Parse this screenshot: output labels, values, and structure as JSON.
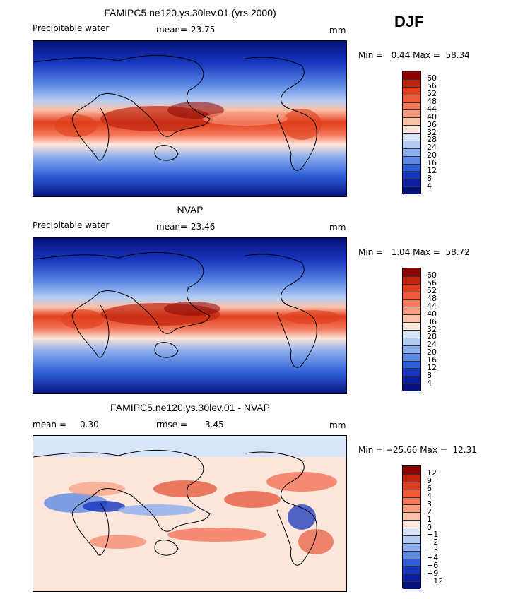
{
  "season": "DJF",
  "units": "mm",
  "panels": [
    {
      "title": "FAMIPC5.ne120.ys.30lev.01 (yrs 2000)",
      "subtitle": "Precipitable water",
      "mean_label": "mean=",
      "mean_value": "23.75",
      "units": "mm",
      "minmax": "Min =   0.44 Max =  58.34"
    },
    {
      "title": "NVAP",
      "subtitle": "Precipitable water",
      "mean_label": "mean=",
      "mean_value": "23.46",
      "units": "mm",
      "minmax": "Min =   1.04 Max =  58.72"
    },
    {
      "title": "FAMIPC5.ne120.ys.30lev.01 - NVAP",
      "mean_label": "mean =",
      "mean_value": "0.30",
      "rmse_label": "rmse =",
      "rmse_value": "3.45",
      "units": "mm",
      "minmax": "Min = −25.66 Max =  12.31"
    }
  ],
  "chart_data": [
    {
      "type": "heatmap",
      "title": "FAMIPC5.ne120.ys.30lev.01 (yrs 2000)",
      "variable": "Precipitable water",
      "units": "mm",
      "mean": 23.75,
      "min": 0.44,
      "max": 58.34,
      "colorbar_levels": [
        "60",
        "56",
        "52",
        "48",
        "44",
        "40",
        "36",
        "32",
        "28",
        "24",
        "20",
        "16",
        "12",
        "8",
        "4"
      ],
      "colorbar_colors": [
        "#8b0000",
        "#c0260f",
        "#e03f1d",
        "#f05a3a",
        "#f47a5c",
        "#f89c80",
        "#fbc2ab",
        "#fde6db",
        "#d8e5f8",
        "#b4cdf4",
        "#8caeec",
        "#5c89e4",
        "#2f5fd8",
        "#1736be",
        "#0b1fa0",
        "#06107a"
      ]
    },
    {
      "type": "heatmap",
      "title": "NVAP",
      "variable": "Precipitable water",
      "units": "mm",
      "mean": 23.46,
      "min": 1.04,
      "max": 58.72,
      "colorbar_levels": [
        "60",
        "56",
        "52",
        "48",
        "44",
        "40",
        "36",
        "32",
        "28",
        "24",
        "20",
        "16",
        "12",
        "8",
        "4"
      ],
      "colorbar_colors": [
        "#8b0000",
        "#c0260f",
        "#e03f1d",
        "#f05a3a",
        "#f47a5c",
        "#f89c80",
        "#fbc2ab",
        "#fde6db",
        "#d8e5f8",
        "#b4cdf4",
        "#8caeec",
        "#5c89e4",
        "#2f5fd8",
        "#1736be",
        "#0b1fa0",
        "#06107a"
      ]
    },
    {
      "type": "heatmap",
      "title": "FAMIPC5.ne120.ys.30lev.01 - NVAP",
      "units": "mm",
      "mean": 0.3,
      "rmse": 3.45,
      "min": -25.66,
      "max": 12.31,
      "colorbar_levels": [
        "12",
        "9",
        "6",
        "4",
        "3",
        "2",
        "1",
        "0",
        "−1",
        "−2",
        "−3",
        "−4",
        "−6",
        "−9",
        "−12"
      ],
      "colorbar_colors": [
        "#8b0000",
        "#c0260f",
        "#e03f1d",
        "#f05a3a",
        "#f47a5c",
        "#f89c80",
        "#fbc2ab",
        "#fde6db",
        "#d8e5f8",
        "#b4cdf4",
        "#8caeec",
        "#5c89e4",
        "#2f5fd8",
        "#1736be",
        "#0b1fa0",
        "#06107a"
      ]
    }
  ]
}
